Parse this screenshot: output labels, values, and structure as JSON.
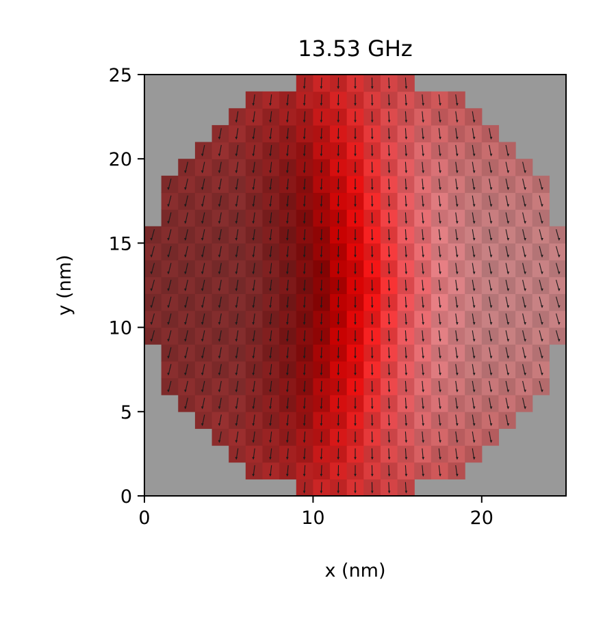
{
  "chart_data": {
    "type": "heatmap",
    "title": "13.53 GHz",
    "xlabel": "x (nm)",
    "ylabel": "y (nm)",
    "xlim": [
      0,
      25
    ],
    "ylim": [
      0,
      25
    ],
    "xticks": [
      0,
      10,
      20
    ],
    "yticks": [
      0,
      5,
      10,
      15,
      20,
      25
    ],
    "cell_size_nm": 1,
    "disk_center": [
      12.5,
      12.5
    ],
    "disk_radius_nm": 12.5,
    "background_color": "#999999",
    "arrow_color": "#1a1a1a",
    "grid": false,
    "description_colormap": "red intensity; darkest red near x≈7 nm, brightest red along x≈11–14 nm, light pink on right side",
    "note": "arrows point mainly in -y direction (small in-plane magnetization quiver)"
  }
}
